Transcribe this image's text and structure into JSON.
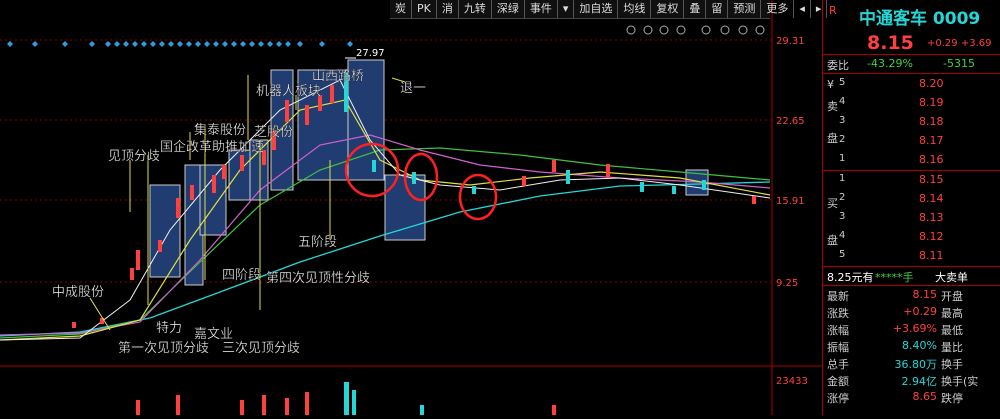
{
  "toolbar": {
    "items": [
      "炭",
      "PK",
      "消",
      "九转",
      "深绿",
      "事件",
      "▾",
      "加自选",
      "均线",
      "复权",
      "叠",
      "留",
      "预测",
      "更多",
      "◂",
      "▸"
    ]
  },
  "chart": {
    "y_labels": [
      "29.31",
      "22.65",
      "15.91",
      "9.25",
      "23433"
    ],
    "peak_label": "27.97",
    "annotations": [
      "山西路桥",
      "退一",
      "机器人板块",
      "集泰股份",
      "芝股份",
      "国企改革助推加速",
      "见顶分歧",
      "中成股份",
      "特力",
      "嘉文业",
      "第一次见顶分歧",
      "三次见顶分歧",
      "五阶段",
      "四阶段",
      "第四次见顶性分歧"
    ]
  },
  "quote": {
    "range_mark": "R",
    "title": "中通客车 0009",
    "price": "8.15",
    "change": "+0.29",
    "change_pct": "+3.69",
    "weibi_label": "委比",
    "weibi_pct": "-43.29%",
    "weibi_diff": "-5315",
    "sell_chars": [
      "¥",
      "卖",
      "盘"
    ],
    "sell": [
      {
        "level": "5",
        "price": "8.20"
      },
      {
        "level": "4",
        "price": "8.19"
      },
      {
        "level": "3",
        "price": "8.18"
      },
      {
        "level": "2",
        "price": "8.17"
      },
      {
        "level": "1",
        "price": "8.16"
      }
    ],
    "buy_chars": [
      "买",
      "盘"
    ],
    "buy": [
      {
        "level": "1",
        "price": "8.15"
      },
      {
        "level": "2",
        "price": "8.14"
      },
      {
        "level": "3",
        "price": "8.13"
      },
      {
        "level": "4",
        "price": "8.12"
      },
      {
        "level": "5",
        "price": "8.11"
      }
    ],
    "big_order": {
      "price": "8.25元有",
      "stars": "*****手",
      "label": "大卖单"
    },
    "info": [
      {
        "label": "最新",
        "value": "8.15",
        "label2": "开盘"
      },
      {
        "label": "涨跌",
        "value": "+0.29",
        "label2": "最高"
      },
      {
        "label": "涨幅",
        "value": "+3.69%",
        "label2": "最低"
      },
      {
        "label": "振幅",
        "value": "8.40%",
        "label2": "量比"
      },
      {
        "label": "总手",
        "value": "36.80万",
        "label2": "换手"
      },
      {
        "label": "金额",
        "value": "2.94亿",
        "label2": "换手(实"
      },
      {
        "label": "涨停",
        "value": "8.65",
        "label2": "跌停"
      }
    ]
  }
}
